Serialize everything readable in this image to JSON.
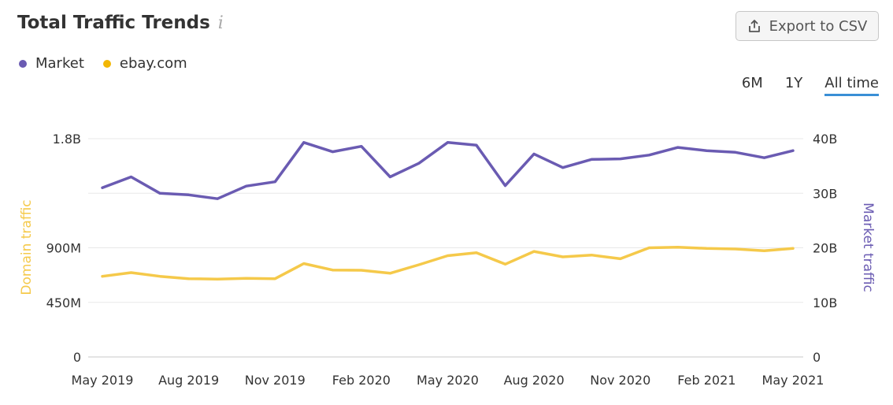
{
  "header": {
    "title": "Total Traffic Trends",
    "export_label": "Export to CSV"
  },
  "legend": [
    {
      "label": "Market",
      "color": "#6a5bb2"
    },
    {
      "label": "ebay.com",
      "color": "#f2b705"
    }
  ],
  "range": {
    "options": [
      "6M",
      "1Y",
      "All time"
    ],
    "selected": "All time"
  },
  "chart_data": {
    "type": "line",
    "x": [
      "May 2019",
      "Jun 2019",
      "Jul 2019",
      "Aug 2019",
      "Sep 2019",
      "Oct 2019",
      "Nov 2019",
      "Dec 2019",
      "Jan 2020",
      "Feb 2020",
      "Mar 2020",
      "Apr 2020",
      "May 2020",
      "Jun 2020",
      "Jul 2020",
      "Aug 2020",
      "Sep 2020",
      "Oct 2020",
      "Nov 2020",
      "Dec 2020",
      "Jan 2021",
      "Feb 2021",
      "Mar 2021",
      "Apr 2021",
      "May 2021"
    ],
    "x_tick_labels": [
      "May 2019",
      "Aug 2019",
      "Nov 2019",
      "Feb 2020",
      "May 2020",
      "Aug 2020",
      "Nov 2020",
      "Feb 2021",
      "May 2021"
    ],
    "series": [
      {
        "name": "Market",
        "axis": "right",
        "color": "#6a5bb2",
        "values": [
          31.0,
          33.0,
          30.0,
          29.7,
          29.0,
          31.3,
          32.1,
          39.3,
          37.6,
          38.6,
          33.0,
          35.5,
          39.3,
          38.8,
          31.4,
          37.2,
          34.7,
          36.2,
          36.3,
          37.0,
          38.4,
          37.8,
          37.5,
          36.5,
          37.8
        ]
      },
      {
        "name": "ebay.com",
        "axis": "left",
        "color": "#f5c94a",
        "values": [
          665000000,
          695000000,
          665000000,
          645000000,
          642000000,
          648000000,
          645000000,
          770000000,
          717000000,
          715000000,
          690000000,
          760000000,
          835000000,
          860000000,
          765000000,
          870000000,
          825000000,
          840000000,
          810000000,
          900000000,
          905000000,
          895000000,
          890000000,
          875000000,
          895000000
        ]
      }
    ],
    "left_axis": {
      "label": "Domain traffic",
      "ticks": [
        "0",
        "450M",
        "900M",
        "1.8B"
      ],
      "tick_values": [
        0,
        450000000,
        900000000,
        1800000000
      ],
      "range": [
        0,
        1800000000
      ]
    },
    "right_axis": {
      "label": "Market traffic",
      "ticks": [
        "0",
        "10B",
        "20B",
        "30B",
        "40B"
      ],
      "tick_values": [
        0,
        10,
        20,
        30,
        40
      ],
      "range": [
        0,
        40
      ]
    },
    "grid": true
  }
}
